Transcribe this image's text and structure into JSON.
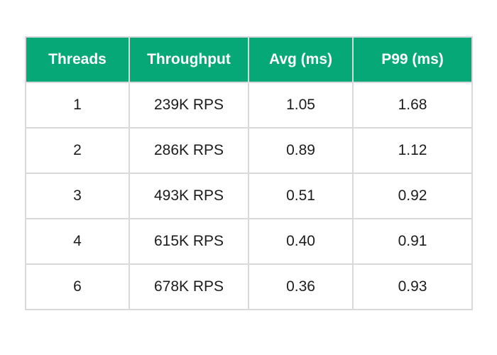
{
  "colors": {
    "header_background": "#06a878",
    "header_text": "#ffffff",
    "border": "#d9d9d9",
    "cell_text": "#1c1c1c"
  },
  "chart_data": {
    "type": "table",
    "columns": [
      "Threads",
      "Throughput",
      "Avg (ms)",
      "P99 (ms)"
    ],
    "rows": [
      [
        "1",
        "239K RPS",
        "1.05",
        "1.68"
      ],
      [
        "2",
        "286K RPS",
        "0.89",
        "1.12"
      ],
      [
        "3",
        "493K RPS",
        "0.51",
        "0.92"
      ],
      [
        "4",
        "615K RPS",
        "0.40",
        "0.91"
      ],
      [
        "6",
        "678K RPS",
        "0.36",
        "0.93"
      ]
    ]
  }
}
